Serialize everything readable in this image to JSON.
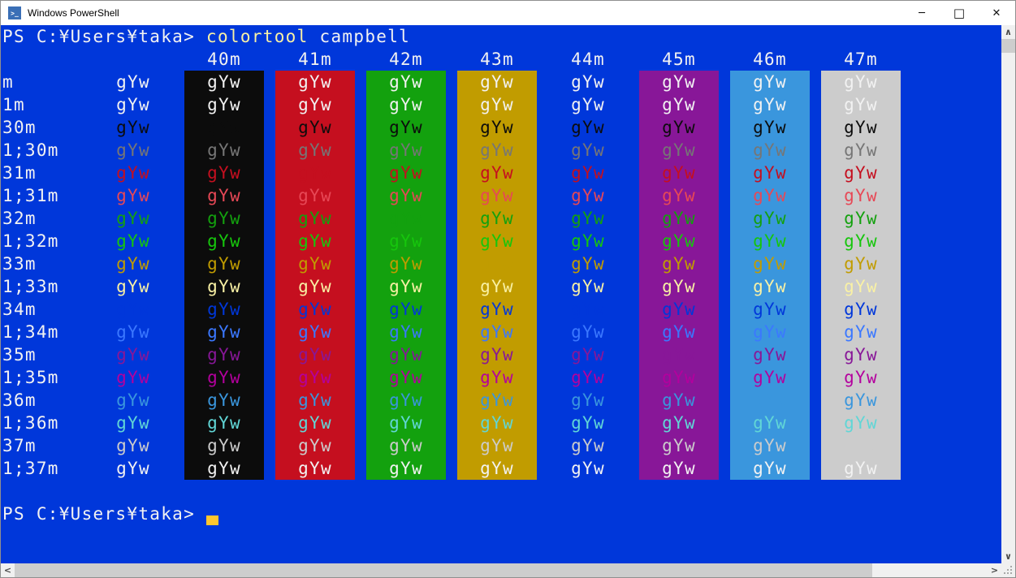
{
  "titlebar": {
    "title": "Windows PowerShell",
    "icon_glyph": ">_"
  },
  "window_controls": {
    "minimize": "─",
    "maximize": "□",
    "close": "✕"
  },
  "terminal": {
    "prompt": "PS C:¥Users¥taka>",
    "command": "colortool",
    "argument": "campbell",
    "cell_text": "gYw",
    "colors": {
      "background": "#0037DA",
      "foreground": "#F2F2F2",
      "command": "#F9F1A5",
      "argument": "#F2F2F2",
      "cursor": "#FFC62E"
    },
    "columns": [
      {
        "header": "",
        "bg": ""
      },
      {
        "header": "40m",
        "bg": "#0C0C0C"
      },
      {
        "header": "41m",
        "bg": "#C50F1F"
      },
      {
        "header": "42m",
        "bg": "#13A10E"
      },
      {
        "header": "43m",
        "bg": "#C19C00"
      },
      {
        "header": "44m",
        "bg": "#0037DA"
      },
      {
        "header": "45m",
        "bg": "#881798"
      },
      {
        "header": "46m",
        "bg": "#3A96DD"
      },
      {
        "header": "47m",
        "bg": "#CCCCCC"
      }
    ],
    "rows": [
      {
        "label": "m",
        "fg": "#F2F2F2"
      },
      {
        "label": "1m",
        "fg": "#F2F2F2"
      },
      {
        "label": "30m",
        "fg": "#0C0C0C"
      },
      {
        "label": "1;30m",
        "fg": "#767676"
      },
      {
        "label": "31m",
        "fg": "#C50F1F"
      },
      {
        "label": "1;31m",
        "fg": "#E74856"
      },
      {
        "label": "32m",
        "fg": "#13A10E"
      },
      {
        "label": "1;32m",
        "fg": "#16C60C"
      },
      {
        "label": "33m",
        "fg": "#C19C00"
      },
      {
        "label": "1;33m",
        "fg": "#F9F1A5"
      },
      {
        "label": "34m",
        "fg": "#0037DA"
      },
      {
        "label": "1;34m",
        "fg": "#3B78FF"
      },
      {
        "label": "35m",
        "fg": "#881798"
      },
      {
        "label": "1;35m",
        "fg": "#B4009E"
      },
      {
        "label": "36m",
        "fg": "#3A96DD"
      },
      {
        "label": "1;36m",
        "fg": "#61D6D6"
      },
      {
        "label": "37m",
        "fg": "#CCCCCC"
      },
      {
        "label": "1;37m",
        "fg": "#F2F2F2"
      }
    ]
  },
  "scrollbar": {
    "up": "∧",
    "down": "∨",
    "left": "<",
    "right": ">"
  }
}
